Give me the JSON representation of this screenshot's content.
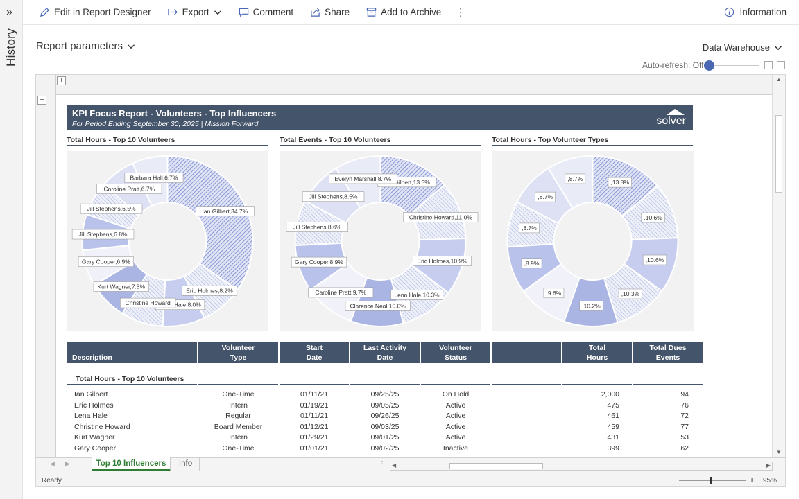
{
  "rail": {
    "label": "History",
    "expand_icon": "»"
  },
  "toolbar": {
    "edit": "Edit in Report Designer",
    "export": "Export",
    "comment": "Comment",
    "share": "Share",
    "archive": "Add to Archive",
    "more": "⋮",
    "info": "Information"
  },
  "params": {
    "label": "Report parameters"
  },
  "datasource": {
    "label": "Data Warehouse"
  },
  "autorefresh": {
    "label": "Auto-refresh: Off"
  },
  "report": {
    "title": "KPI Focus Report - Volunteers - Top Influencers",
    "subtitle": "For Period Ending September 30, 2025 | Mission Forward",
    "logo": "solver"
  },
  "chart_data": [
    {
      "type": "pie",
      "title": "Total Hours - Top 10 Volunteers",
      "labels": [
        "Ian Gilbert,34.7%",
        "Eric Holmes,8.2%",
        "Lena Hale,8.0%",
        "Christine Howard",
        "Kurt Wagner,7.5%",
        "Gary Cooper,6.9%",
        "Jill Stephens,6.8%",
        "Jill Stephens,6.5%",
        "Caroline Pratt,6.7%",
        "Barbara Hall,6.7%"
      ],
      "values": [
        34.7,
        8.2,
        8.0,
        8.0,
        7.5,
        6.9,
        6.8,
        6.5,
        6.7,
        6.7
      ]
    },
    {
      "type": "pie",
      "title": "Total Events - Top 10 Volunteers",
      "labels": [
        "Ian Gilbert,13.5%",
        "Christine Howard,11.0%",
        "Eric Holmes,10.9%",
        "Lena Hale,10.3%",
        "Clarence Neal,10.0%",
        "Caroline Pratt,9.7%",
        "Gary Cooper,8.9%",
        "Jill Stephens,8.6%",
        "Jill Stephens,8.5%",
        "Evelyn Marshall,8.7%"
      ],
      "values": [
        13.5,
        11.0,
        10.9,
        10.3,
        10.0,
        9.7,
        8.9,
        8.6,
        8.5,
        8.7
      ]
    },
    {
      "type": "pie",
      "title": "Total Hours - Top Volunteer Types",
      "labels": [
        ",13.8%",
        ",10.6%",
        ",10.6%",
        ",10.3%",
        ",10.2%",
        ",9.6%",
        ",8.9%",
        ",8.7%",
        ",8.7%",
        ",8.7%"
      ],
      "values": [
        13.8,
        10.6,
        10.6,
        10.3,
        10.2,
        9.6,
        8.9,
        8.7,
        8.7,
        8.7
      ]
    }
  ],
  "table": {
    "headers": [
      {
        "l1": "",
        "l2": "Description"
      },
      {
        "l1": "Volunteer",
        "l2": "Type"
      },
      {
        "l1": "Start",
        "l2": "Date"
      },
      {
        "l1": "Last Activity",
        "l2": "Date"
      },
      {
        "l1": "Volunteer",
        "l2": "Status"
      },
      {
        "l1": "",
        "l2": ""
      },
      {
        "l1": "Total",
        "l2": "Hours"
      },
      {
        "l1": "Total Dues",
        "l2": "Events"
      }
    ],
    "section": "Total Hours - Top 10 Volunteers",
    "rows": [
      [
        "Ian Gilbert",
        "One-Time",
        "01/11/21",
        "09/25/25",
        "On Hold",
        "2,000",
        "94"
      ],
      [
        "Eric Holmes",
        "Intern",
        "01/19/21",
        "09/05/25",
        "Active",
        "475",
        "76"
      ],
      [
        "Lena Hale",
        "Regular",
        "01/11/21",
        "09/26/25",
        "Active",
        "461",
        "72"
      ],
      [
        "Christine Howard",
        "Board Member",
        "01/12/21",
        "09/03/25",
        "Active",
        "459",
        "77"
      ],
      [
        "Kurt Wagner",
        "Intern",
        "01/29/21",
        "09/01/25",
        "Active",
        "431",
        "53"
      ],
      [
        "Gary Cooper",
        "One-Time",
        "01/01/21",
        "09/02/25",
        "Inactive",
        "399",
        "62"
      ]
    ]
  },
  "sheets": {
    "active": "Top 10 Influencers",
    "other": "Info"
  },
  "status": {
    "ready": "Ready",
    "zoom": "95%",
    "minus": "—",
    "plus": "+"
  },
  "colors": {
    "header": "#44546a",
    "accent": "#4a67b3",
    "slice": "#5b73c4"
  }
}
